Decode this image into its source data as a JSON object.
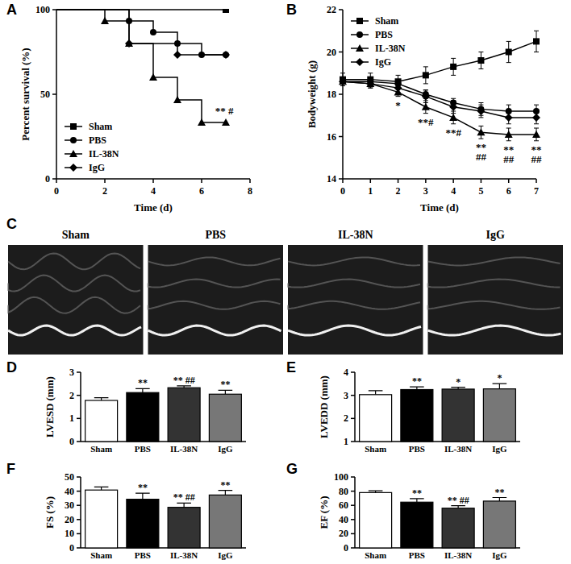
{
  "chart_data": [
    {
      "type": "line",
      "title": "A",
      "line_style": "step",
      "x_label": "Time (d)",
      "y_label": "Percent survival (%)",
      "xlim": [
        0,
        8
      ],
      "xticks": [
        0,
        2,
        4,
        6,
        8
      ],
      "ylim": [
        0,
        100
      ],
      "yticks": [
        0,
        50,
        100
      ],
      "legend": "lower left",
      "series": [
        {
          "name": "Sham",
          "color": "#000000",
          "marker": "square",
          "x": [
            0,
            7
          ],
          "values": [
            100,
            100
          ]
        },
        {
          "name": "PBS",
          "color": "#000000",
          "marker": "circle",
          "x": [
            0,
            3,
            4,
            5,
            6,
            7
          ],
          "values": [
            100,
            93.3,
            86.7,
            80,
            73.3,
            73.3
          ]
        },
        {
          "name": "IL-38N",
          "color": "#000000",
          "marker": "triangle",
          "x": [
            0,
            2,
            3,
            4,
            5,
            6,
            7
          ],
          "values": [
            100,
            93.3,
            80,
            60,
            46.7,
            33.3,
            33.3
          ]
        },
        {
          "name": "IgG",
          "color": "#000000",
          "marker": "diamond",
          "x": [
            0,
            3,
            5,
            7
          ],
          "values": [
            100,
            80,
            73.3,
            73.3
          ]
        }
      ],
      "annotations": [
        {
          "x": 7,
          "lines": [
            "** #"
          ]
        }
      ]
    },
    {
      "type": "line",
      "title": "B",
      "x_label": "Time (d)",
      "y_label": "Bodyweight (g)",
      "xlim": [
        0,
        7
      ],
      "xticks": [
        0,
        1,
        2,
        3,
        4,
        5,
        6,
        7
      ],
      "ylim": [
        14,
        22
      ],
      "yticks": [
        14,
        16,
        18,
        20,
        22
      ],
      "legend": "upper left",
      "x": [
        0,
        1,
        2,
        3,
        4,
        5,
        6,
        7
      ],
      "series": [
        {
          "name": "Sham",
          "color": "#000000",
          "marker": "square",
          "values": [
            18.7,
            18.7,
            18.6,
            18.9,
            19.3,
            19.6,
            20.0,
            20.5
          ],
          "errors": [
            0.3,
            0.3,
            0.3,
            0.4,
            0.4,
            0.4,
            0.5,
            0.5
          ]
        },
        {
          "name": "PBS",
          "color": "#000000",
          "marker": "circle",
          "values": [
            18.6,
            18.6,
            18.5,
            18.0,
            17.6,
            17.3,
            17.2,
            17.2
          ],
          "errors": [
            0.2,
            0.2,
            0.2,
            0.2,
            0.2,
            0.3,
            0.3,
            0.3
          ]
        },
        {
          "name": "IL-38N",
          "color": "#000000",
          "marker": "triangle",
          "values": [
            18.6,
            18.5,
            18.1,
            17.4,
            16.9,
            16.2,
            16.1,
            16.1
          ],
          "errors": [
            0.2,
            0.2,
            0.2,
            0.3,
            0.3,
            0.3,
            0.3,
            0.3
          ]
        },
        {
          "name": "IgG",
          "color": "#000000",
          "marker": "diamond",
          "values": [
            18.6,
            18.5,
            18.3,
            17.9,
            17.4,
            17.2,
            16.9,
            16.9
          ],
          "errors": [
            0.2,
            0.2,
            0.2,
            0.3,
            0.3,
            0.3,
            0.3,
            0.3
          ]
        }
      ],
      "annotations": [
        {
          "x": 2,
          "lines": [
            "*"
          ]
        },
        {
          "x": 3,
          "lines": [
            "**#"
          ]
        },
        {
          "x": 4,
          "lines": [
            "**#"
          ]
        },
        {
          "x": 5,
          "lines": [
            "**",
            "##"
          ]
        },
        {
          "x": 6,
          "lines": [
            "**",
            "##"
          ]
        },
        {
          "x": 7,
          "lines": [
            "**",
            "##"
          ]
        }
      ]
    },
    {
      "type": "image",
      "title": "C",
      "labels": [
        "Sham",
        "PBS",
        "IL-38N",
        "IgG"
      ]
    },
    {
      "type": "bar",
      "title": "D",
      "y_label": "LVESD (mm)",
      "categories": [
        "Sham",
        "PBS",
        "IL-38N",
        "IgG"
      ],
      "values": [
        1.78,
        2.12,
        2.33,
        2.05
      ],
      "errors": [
        0.12,
        0.17,
        0.08,
        0.17
      ],
      "colors": [
        "#ffffff",
        "#000000",
        "#333333",
        "#777777"
      ],
      "ylim": [
        0,
        3
      ],
      "yticks": [
        0,
        1,
        2,
        3
      ],
      "annotations": [
        null,
        "**",
        "** ##",
        "**"
      ]
    },
    {
      "type": "bar",
      "title": "E",
      "y_label": "LVEDD (mm)",
      "categories": [
        "Sham",
        "PBS",
        "IL-38N",
        "IgG"
      ],
      "values": [
        3.03,
        3.25,
        3.27,
        3.28
      ],
      "errors": [
        0.17,
        0.12,
        0.08,
        0.23
      ],
      "colors": [
        "#ffffff",
        "#000000",
        "#333333",
        "#777777"
      ],
      "ylim": [
        1,
        4
      ],
      "yticks": [
        1,
        2,
        3,
        4
      ],
      "annotations": [
        null,
        "**",
        "*",
        "*"
      ]
    },
    {
      "type": "bar",
      "title": "F",
      "y_label": "FS (%)",
      "categories": [
        "Sham",
        "PBS",
        "IL-38N",
        "IgG"
      ],
      "values": [
        40.8,
        34.3,
        28.6,
        37.3
      ],
      "errors": [
        2.2,
        4.3,
        3.0,
        3.3
      ],
      "colors": [
        "#ffffff",
        "#000000",
        "#333333",
        "#777777"
      ],
      "ylim": [
        0,
        50
      ],
      "yticks": [
        0,
        10,
        20,
        30,
        40,
        50
      ],
      "annotations": [
        null,
        "**",
        "** ##",
        "**"
      ]
    },
    {
      "type": "bar",
      "title": "G",
      "y_label": "EF (%)",
      "categories": [
        "Sham",
        "PBS",
        "IL-38N",
        "IgG"
      ],
      "values": [
        78,
        64.5,
        56,
        66
      ],
      "errors": [
        2.5,
        5,
        3.5,
        5
      ],
      "colors": [
        "#ffffff",
        "#000000",
        "#333333",
        "#777777"
      ],
      "ylim": [
        0,
        100
      ],
      "yticks": [
        0,
        20,
        40,
        60,
        80,
        100
      ],
      "annotations": [
        null,
        "**",
        "** ##",
        "**"
      ]
    }
  ]
}
